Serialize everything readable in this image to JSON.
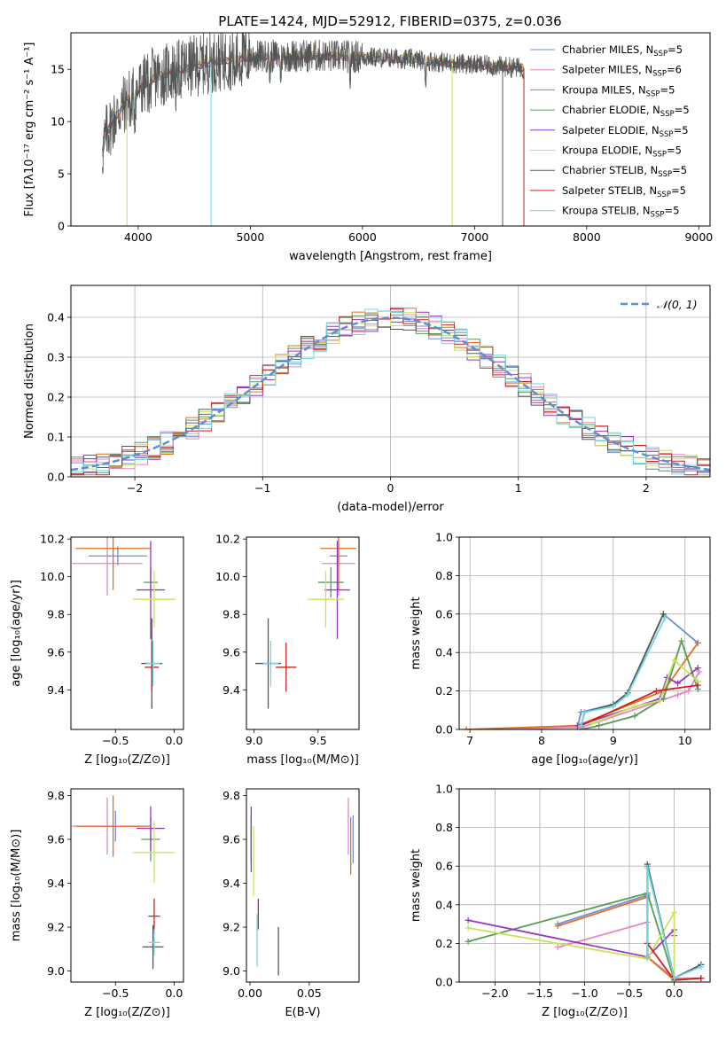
{
  "figure": {
    "title": "PLATE=1424, MJD=52912, FIBERID=0375, z=0.036"
  },
  "colors": {
    "Chabrier MILES": "#6a8fd8",
    "Salpeter MILES": "#e585c2",
    "Kroupa MILES": "#e07020",
    "Chabrier ELODIE": "#5a9a5a",
    "Salpeter ELODIE": "#9a35c0",
    "Kroupa ELODIE": "#c8e35a",
    "Chabrier STELIB": "#555555",
    "Salpeter STELIB": "#cc2020",
    "Kroupa STELIB": "#72d6e0",
    "gaussian": "#5b8fd6",
    "grid": "#b0b0b0"
  },
  "chart_data": [
    {
      "id": "spectrum",
      "type": "line",
      "title": "PLATE=1424, MJD=52912, FIBERID=0375, z=0.036",
      "xlabel": "wavelength [Angstrom, rest frame]",
      "ylabel": "Flux [fλ10⁻¹⁷ erg cm⁻² s⁻¹ A⁻¹]",
      "xlim": [
        3400,
        9100
      ],
      "ylim": [
        0,
        18.5
      ],
      "xticks": [
        4000,
        5000,
        6000,
        7000,
        8000,
        9000
      ],
      "yticks": [
        0,
        5,
        10,
        15
      ],
      "grid": false,
      "legend_position": "top-right",
      "data_range": [
        3680,
        7440
      ],
      "continuum": {
        "x": [
          3680,
          3720,
          3800,
          3900,
          4000,
          4100,
          4300,
          4500,
          4700,
          5000,
          5300,
          5600,
          6000,
          6400,
          6800,
          7200,
          7440
        ],
        "y": [
          7.0,
          9.0,
          10.5,
          12.0,
          13.0,
          14.0,
          14.8,
          15.3,
          15.8,
          16.2,
          16.3,
          16.3,
          16.2,
          16.0,
          15.6,
          15.3,
          15.1
        ]
      },
      "series": [
        {
          "name": "Chabrier MILES, N_SSP=5",
          "legend_main": "Chabrier MILES, N",
          "legend_sub": "SSP",
          "legend_tail": "=5"
        },
        {
          "name": "Salpeter MILES, N_SSP=6",
          "legend_main": "Salpeter MILES, N",
          "legend_sub": "SSP",
          "legend_tail": "=6"
        },
        {
          "name": "Kroupa MILES, N_SSP=5",
          "legend_main": "Kroupa MILES, N",
          "legend_sub": "SSP",
          "legend_tail": "=5"
        },
        {
          "name": "Chabrier ELODIE, N_SSP=5",
          "legend_main": "Chabrier ELODIE, N",
          "legend_sub": "SSP",
          "legend_tail": "=5"
        },
        {
          "name": "Salpeter ELODIE, N_SSP=5",
          "legend_main": "Salpeter ELODIE, N",
          "legend_sub": "SSP",
          "legend_tail": "=5"
        },
        {
          "name": "Kroupa ELODIE, N_SSP=5",
          "legend_main": "Kroupa ELODIE, N",
          "legend_sub": "SSP",
          "legend_tail": "=5"
        },
        {
          "name": "Chabrier STELIB, N_SSP=5",
          "legend_main": "Chabrier STELIB, N",
          "legend_sub": "SSP",
          "legend_tail": "=5"
        },
        {
          "name": "Salpeter STELIB, N_SSP=5",
          "legend_main": "Salpeter STELIB, N",
          "legend_sub": "SSP",
          "legend_tail": "=5"
        },
        {
          "name": "Kroupa STELIB, N_SSP=5",
          "legend_main": "Kroupa STELIB, N",
          "legend_sub": "SSP",
          "legend_tail": "=5"
        }
      ],
      "drops": [
        {
          "x": 3900,
          "series": "Kroupa ELODIE"
        },
        {
          "x": 4650,
          "series": "Kroupa STELIB"
        },
        {
          "x": 6800,
          "series": "Kroupa ELODIE"
        },
        {
          "x": 7250,
          "series": "Chabrier STELIB"
        },
        {
          "x": 7440,
          "series": "Salpeter STELIB"
        }
      ]
    },
    {
      "id": "residuals",
      "type": "line",
      "xlabel": "(data-model)/error",
      "ylabel": "Normed distribution",
      "xlim": [
        -2.5,
        2.5
      ],
      "ylim": [
        0,
        0.48
      ],
      "xticks": [
        -2,
        -1,
        0,
        1,
        2
      ],
      "yticks": [
        0.0,
        0.1,
        0.2,
        0.3,
        0.4
      ],
      "grid": true,
      "legend_position": "top-right",
      "legend": "𝒩(0, 1)",
      "bin_width": 0.1,
      "reference_curve": {
        "name": "𝒩(0, 1)",
        "mean": 0,
        "sigma": 1
      }
    },
    {
      "id": "age_vs_Z",
      "type": "scatter",
      "xlabel": "Z [log₁₀(Z/Z⊙)]",
      "ylabel": "age  [log₁₀(age/yr)]",
      "xlim": [
        -0.88,
        0.08
      ],
      "ylim": [
        9.19,
        10.21
      ],
      "xticks": [
        -0.5,
        0.0
      ],
      "yticks": [
        9.4,
        9.6,
        9.8,
        10.0,
        10.2
      ],
      "grid": false,
      "points": [
        {
          "series": "Chabrier MILES",
          "x": -0.48,
          "xerr": 0.25,
          "y": 10.11,
          "yerr": 0.05
        },
        {
          "series": "Salpeter MILES",
          "x": -0.57,
          "xerr": 0.3,
          "y": 10.07,
          "yerr": 0.17
        },
        {
          "series": "Kroupa MILES",
          "x": -0.52,
          "xerr": 0.32,
          "y": 10.15,
          "yerr": 0.22
        },
        {
          "series": "Chabrier ELODIE",
          "x": -0.2,
          "xerr": 0.06,
          "y": 9.97,
          "yerr": 0.08
        },
        {
          "series": "Salpeter ELODIE",
          "x": -0.2,
          "xerr": 0.12,
          "y": 9.93,
          "yerr": 0.26
        },
        {
          "series": "Kroupa ELODIE",
          "x": -0.17,
          "xerr": 0.18,
          "y": 9.88,
          "yerr": 0.15
        },
        {
          "series": "Chabrier STELIB",
          "x": -0.19,
          "xerr": 0.09,
          "y": 9.54,
          "yerr": 0.24
        },
        {
          "series": "Salpeter STELIB",
          "x": -0.19,
          "xerr": 0.06,
          "y": 9.52,
          "yerr": 0.13
        },
        {
          "series": "Kroupa STELIB",
          "x": -0.18,
          "xerr": 0.06,
          "y": 9.54,
          "yerr": 0.12
        }
      ]
    },
    {
      "id": "age_vs_mass",
      "type": "scatter",
      "xlabel": "mass [log₁₀(M/M⊙)]",
      "ylabel": "",
      "xlim": [
        8.94,
        9.82
      ],
      "ylim": [
        9.19,
        10.21
      ],
      "xticks": [
        9.0,
        9.5
      ],
      "yticks": [
        9.4,
        9.6,
        9.8,
        10.0,
        10.2
      ],
      "grid": false,
      "points": [
        {
          "series": "Chabrier MILES",
          "x": 9.66,
          "xerr": 0.07,
          "y": 10.11,
          "yerr": 0.05
        },
        {
          "series": "Salpeter MILES",
          "x": 9.66,
          "xerr": 0.13,
          "y": 10.07,
          "yerr": 0.17
        },
        {
          "series": "Kroupa MILES",
          "x": 9.66,
          "xerr": 0.14,
          "y": 10.15,
          "yerr": 0.22
        },
        {
          "series": "Chabrier ELODIE",
          "x": 9.6,
          "xerr": 0.1,
          "y": 9.97,
          "yerr": 0.08
        },
        {
          "series": "Salpeter ELODIE",
          "x": 9.65,
          "xerr": 0.1,
          "y": 9.93,
          "yerr": 0.26
        },
        {
          "series": "Kroupa ELODIE",
          "x": 9.56,
          "xerr": 0.14,
          "y": 9.88,
          "yerr": 0.15
        },
        {
          "series": "Chabrier STELIB",
          "x": 9.11,
          "xerr": 0.1,
          "y": 9.54,
          "yerr": 0.24
        },
        {
          "series": "Salpeter STELIB",
          "x": 9.25,
          "xerr": 0.08,
          "y": 9.52,
          "yerr": 0.13
        },
        {
          "series": "Kroupa STELIB",
          "x": 9.13,
          "xerr": 0.06,
          "y": 9.54,
          "yerr": 0.12
        }
      ]
    },
    {
      "id": "weight_vs_age",
      "type": "line",
      "xlabel": "age  [log₁₀(age/yr)]",
      "ylabel": "mass weight",
      "xlim": [
        6.85,
        10.35
      ],
      "ylim": [
        0,
        1.0
      ],
      "xticks": [
        7,
        8,
        9,
        10
      ],
      "yticks": [
        0.0,
        0.2,
        0.4,
        0.6,
        0.8,
        1.0
      ],
      "grid": true,
      "series": [
        {
          "name": "Chabrier MILES",
          "x": [
            8.5,
            8.55,
            9.0,
            9.2,
            9.7,
            10.18
          ],
          "y": [
            0.01,
            0.09,
            0.13,
            0.19,
            0.6,
            0.45
          ]
        },
        {
          "name": "Salpeter MILES",
          "x": [
            6.95,
            8.55,
            9.9,
            10.05,
            10.2
          ],
          "y": [
            0.0,
            0.01,
            0.18,
            0.2,
            0.3
          ]
        },
        {
          "name": "Kroupa MILES",
          "x": [
            6.95,
            8.5,
            9.7,
            10.18
          ],
          "y": [
            0.0,
            0.02,
            0.2,
            0.45
          ]
        },
        {
          "name": "Chabrier ELODIE",
          "x": [
            8.55,
            8.8,
            9.3,
            9.7,
            9.95,
            10.18
          ],
          "y": [
            0.0,
            0.02,
            0.07,
            0.16,
            0.46,
            0.21
          ]
        },
        {
          "name": "Salpeter ELODIE",
          "x": [
            8.5,
            9.65,
            9.75,
            9.9,
            10.18
          ],
          "y": [
            0.02,
            0.16,
            0.27,
            0.24,
            0.32
          ]
        },
        {
          "name": "Kroupa ELODIE",
          "x": [
            8.7,
            9.3,
            9.65,
            9.85,
            10.18
          ],
          "y": [
            0.03,
            0.12,
            0.15,
            0.36,
            0.25
          ]
        },
        {
          "name": "Chabrier STELIB",
          "x": [
            8.55,
            8.6,
            9.0,
            9.2,
            9.7
          ],
          "y": [
            0.02,
            0.09,
            0.13,
            0.19,
            0.6
          ]
        },
        {
          "name": "Salpeter STELIB",
          "x": [
            8.55,
            9.6,
            10.18
          ],
          "y": [
            0.02,
            0.2,
            0.23
          ]
        },
        {
          "name": "Kroupa STELIB",
          "x": [
            8.55,
            8.6,
            9.0,
            9.2,
            9.72
          ],
          "y": [
            0.02,
            0.09,
            0.12,
            0.18,
            0.58
          ]
        }
      ]
    },
    {
      "id": "mass_vs_Z",
      "type": "scatter",
      "xlabel": "Z [log₁₀(Z/Z⊙)]",
      "ylabel": "mass [log₁₀(M/M⊙)]",
      "xlim": [
        -0.88,
        0.08
      ],
      "ylim": [
        8.95,
        9.83
      ],
      "xticks": [
        -0.5,
        0.0
      ],
      "yticks": [
        9.0,
        9.2,
        9.4,
        9.6,
        9.8
      ],
      "grid": false,
      "points": [
        {
          "series": "Chabrier MILES",
          "x": -0.5,
          "xerr": 0.22,
          "y": 9.66,
          "yerr": 0.07
        },
        {
          "series": "Salpeter MILES",
          "x": -0.57,
          "xerr": 0.3,
          "y": 9.66,
          "yerr": 0.13
        },
        {
          "series": "Kroupa MILES",
          "x": -0.52,
          "xerr": 0.32,
          "y": 9.66,
          "yerr": 0.14
        },
        {
          "series": "Chabrier ELODIE",
          "x": -0.2,
          "xerr": 0.08,
          "y": 9.6,
          "yerr": 0.1
        },
        {
          "series": "Salpeter ELODIE",
          "x": -0.2,
          "xerr": 0.12,
          "y": 9.65,
          "yerr": 0.1
        },
        {
          "series": "Kroupa ELODIE",
          "x": -0.17,
          "xerr": 0.18,
          "y": 9.54,
          "yerr": 0.14
        },
        {
          "series": "Chabrier STELIB",
          "x": -0.18,
          "xerr": 0.09,
          "y": 9.11,
          "yerr": 0.1
        },
        {
          "series": "Salpeter STELIB",
          "x": -0.17,
          "xerr": 0.05,
          "y": 9.25,
          "yerr": 0.08
        },
        {
          "series": "Kroupa STELIB",
          "x": -0.17,
          "xerr": 0.05,
          "y": 9.13,
          "yerr": 0.06
        }
      ]
    },
    {
      "id": "mass_vs_ebv",
      "type": "scatter",
      "xlabel": "E(B-V)",
      "ylabel": "",
      "xlim": [
        -0.003,
        0.092
      ],
      "ylim": [
        8.95,
        9.83
      ],
      "xticks": [
        0.0,
        0.05
      ],
      "yticks": [
        9.0,
        9.2,
        9.4,
        9.6,
        9.8
      ],
      "grid": false,
      "points": [
        {
          "series": "Chabrier MILES",
          "x": 0.087,
          "xerr": 0,
          "y": 9.6,
          "yerr": 0.11
        },
        {
          "series": "Salpeter MILES",
          "x": 0.083,
          "xerr": 0,
          "y": 9.66,
          "yerr": 0.13
        },
        {
          "series": "Kroupa MILES",
          "x": 0.085,
          "xerr": 0,
          "y": 9.57,
          "yerr": 0.13
        },
        {
          "series": "Chabrier ELODIE",
          "x": 0.001,
          "xerr": 0,
          "y": 9.6,
          "yerr": 0.1
        },
        {
          "series": "Salpeter ELODIE",
          "x": 0.001,
          "xerr": 0,
          "y": 9.6,
          "yerr": 0.15
        },
        {
          "series": "Kroupa ELODIE",
          "x": 0.003,
          "xerr": 0,
          "y": 9.5,
          "yerr": 0.16
        },
        {
          "series": "Chabrier STELIB",
          "x": 0.024,
          "xerr": 0,
          "y": 9.09,
          "yerr": 0.11
        },
        {
          "series": "Salpeter STELIB",
          "x": 0.007,
          "xerr": 0,
          "y": 9.26,
          "yerr": 0.07
        },
        {
          "series": "Kroupa STELIB",
          "x": 0.006,
          "xerr": 0,
          "y": 9.14,
          "yerr": 0.12
        }
      ]
    },
    {
      "id": "weight_vs_Z",
      "type": "line",
      "xlabel": "Z [log₁₀(Z/Z⊙)]",
      "ylabel": "mass weight",
      "xlim": [
        -2.4,
        0.4
      ],
      "ylim": [
        0,
        1.0
      ],
      "xticks": [
        -2.0,
        -1.5,
        -1.0,
        -0.5,
        0.0
      ],
      "yticks": [
        0.0,
        0.2,
        0.4,
        0.6,
        0.8,
        1.0
      ],
      "grid": true,
      "series": [
        {
          "name": "Chabrier MILES",
          "x": [
            -1.3,
            -0.3,
            -0.3,
            0.0,
            0.3
          ],
          "y": [
            0.3,
            0.45,
            0.6,
            0.02,
            0.09
          ]
        },
        {
          "name": "Salpeter MILES",
          "x": [
            -1.3,
            -0.3,
            -0.3,
            0.0,
            0.3
          ],
          "y": [
            0.18,
            0.31,
            0.13,
            0.02,
            0.02
          ]
        },
        {
          "name": "Kroupa MILES",
          "x": [
            -1.3,
            -0.3,
            -0.3,
            0.0,
            0.3
          ],
          "y": [
            0.29,
            0.44,
            0.13,
            0.01,
            0.02
          ]
        },
        {
          "name": "Chabrier ELODIE",
          "x": [
            -2.3,
            -0.3,
            0.0,
            0.3
          ],
          "y": [
            0.21,
            0.46,
            0.01,
            0.02
          ]
        },
        {
          "name": "Salpeter ELODIE",
          "x": [
            -2.3,
            -0.3,
            0.0,
            0.0
          ],
          "y": [
            0.32,
            0.13,
            0.27,
            0.24
          ]
        },
        {
          "name": "Kroupa ELODIE",
          "x": [
            -2.3,
            -0.3,
            0.0,
            0.0
          ],
          "y": [
            0.28,
            0.12,
            0.36,
            0.01
          ]
        },
        {
          "name": "Chabrier STELIB",
          "x": [
            -0.3,
            -0.3,
            0.0,
            0.3
          ],
          "y": [
            0.13,
            0.61,
            0.02,
            0.09
          ]
        },
        {
          "name": "Salpeter STELIB",
          "x": [
            -0.3,
            0.0,
            0.3
          ],
          "y": [
            0.2,
            0.01,
            0.02
          ]
        },
        {
          "name": "Kroupa STELIB",
          "x": [
            -0.3,
            -0.3,
            0.0,
            0.3
          ],
          "y": [
            0.13,
            0.59,
            0.02,
            0.08
          ]
        }
      ]
    }
  ]
}
